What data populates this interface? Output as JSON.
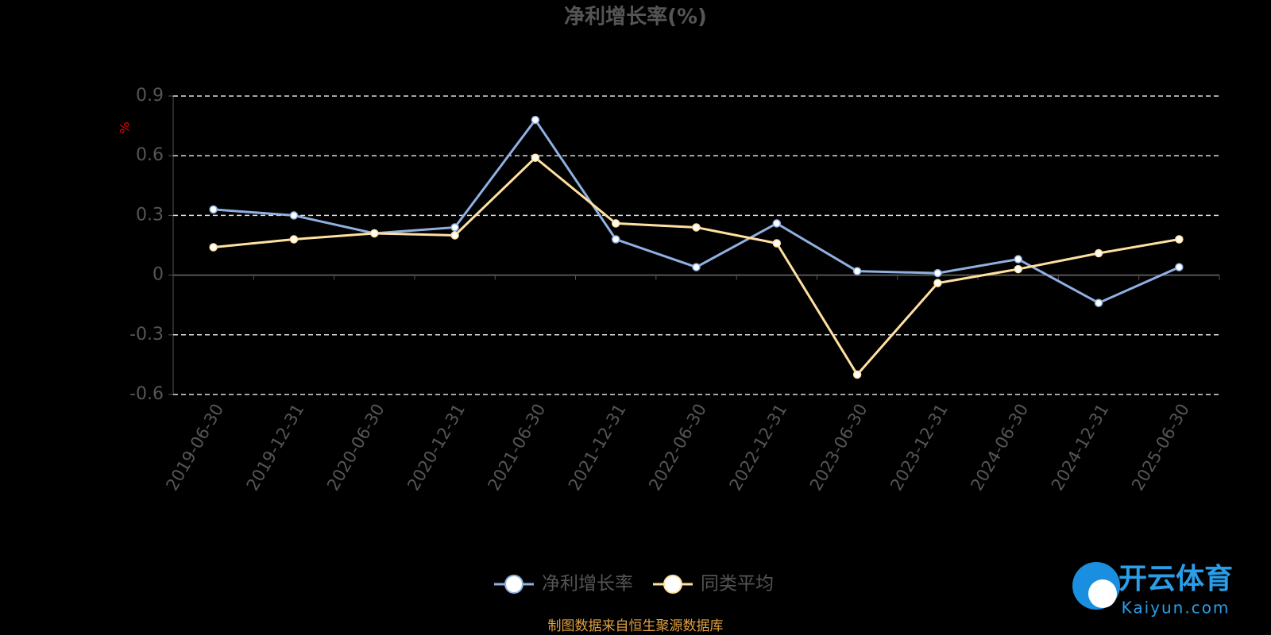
{
  "chart_data": {
    "type": "line",
    "title": "净利增长率(%)",
    "y_label": "%",
    "categories": [
      "2019-06-30",
      "2019-12-31",
      "2020-06-30",
      "2020-12-31",
      "2021-06-30",
      "2021-12-31",
      "2022-06-30",
      "2022-12-31",
      "2023-06-30",
      "2023-12-31",
      "2024-06-30",
      "2024-12-31",
      "2025-06-30"
    ],
    "series": [
      {
        "name": "净利增长率",
        "color": "#8fb0e0",
        "values": [
          0.33,
          0.3,
          0.21,
          0.24,
          0.78,
          0.18,
          0.04,
          0.26,
          0.02,
          0.01,
          0.08,
          -0.14,
          0.04
        ]
      },
      {
        "name": "同类平均",
        "color": "#ffe0a0",
        "values": [
          0.14,
          0.18,
          0.21,
          0.2,
          0.59,
          0.26,
          0.24,
          0.16,
          -0.5,
          -0.04,
          0.03,
          0.11,
          0.18
        ]
      }
    ],
    "ylim": [
      -0.6,
      0.9
    ],
    "yticks": [
      -0.6,
      -0.3,
      0,
      0.3,
      0.6,
      0.9
    ],
    "grid": true,
    "source": "制图数据来自恒生聚源数据库",
    "watermark": {
      "brand": "开云体育",
      "site": "Kaiyun.com"
    }
  }
}
